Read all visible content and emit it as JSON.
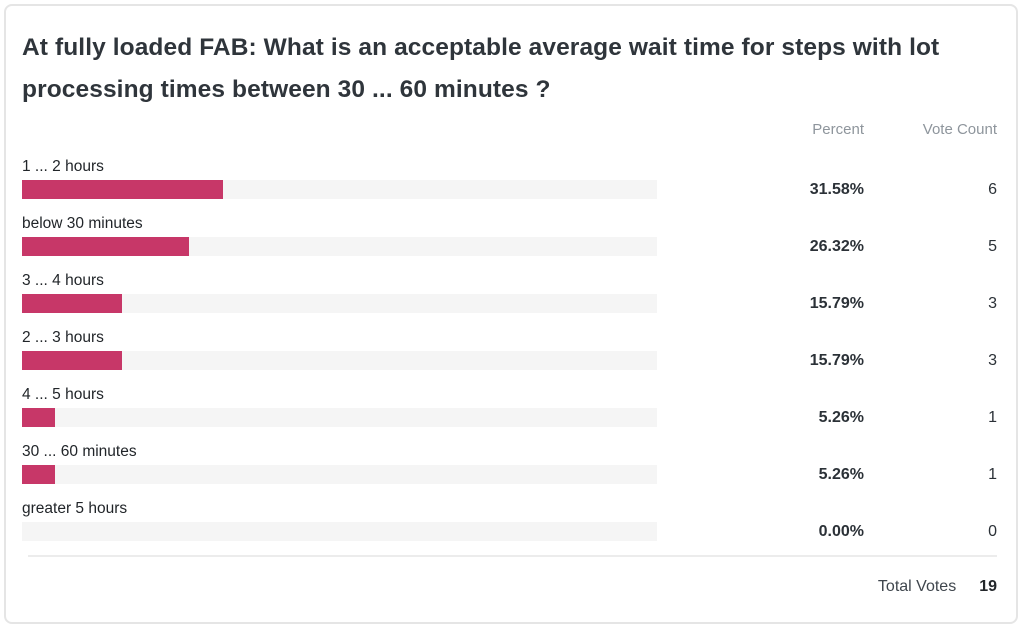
{
  "poll": {
    "title": "At fully loaded FAB: What is an acceptable average wait time for steps with lot processing times between 30 ... 60 minutes ?",
    "columns": {
      "percent": "Percent",
      "vote_count": "Vote Count"
    },
    "options": [
      {
        "label": "1 ... 2 hours",
        "percent": "31.58%",
        "percent_value": 31.58,
        "votes": 6
      },
      {
        "label": "below 30 minutes",
        "percent": "26.32%",
        "percent_value": 26.32,
        "votes": 5
      },
      {
        "label": "3 ... 4 hours",
        "percent": "15.79%",
        "percent_value": 15.79,
        "votes": 3
      },
      {
        "label": "2 ... 3 hours",
        "percent": "15.79%",
        "percent_value": 15.79,
        "votes": 3
      },
      {
        "label": "4 ... 5 hours",
        "percent": "5.26%",
        "percent_value": 5.26,
        "votes": 1
      },
      {
        "label": "30 ... 60 minutes",
        "percent": "5.26%",
        "percent_value": 5.26,
        "votes": 1
      },
      {
        "label": "greater 5 hours",
        "percent": "0.00%",
        "percent_value": 0.0,
        "votes": 0
      }
    ],
    "total_votes_label": "Total Votes",
    "total_votes": 19
  },
  "colors": {
    "bar_fill": "#c73768",
    "bar_track": "#f5f5f5",
    "card_border": "#e5e5e5"
  },
  "chart_data": {
    "type": "bar",
    "orientation": "horizontal",
    "title": "At fully loaded FAB: What is an acceptable average wait time for steps with lot processing times between 30 ... 60 minutes ?",
    "categories": [
      "1 ... 2 hours",
      "below 30 minutes",
      "3 ... 4 hours",
      "2 ... 3 hours",
      "4 ... 5 hours",
      "30 ... 60 minutes",
      "greater 5 hours"
    ],
    "series": [
      {
        "name": "Percent",
        "values": [
          31.58,
          26.32,
          15.79,
          15.79,
          5.26,
          5.26,
          0.0
        ]
      },
      {
        "name": "Vote Count",
        "values": [
          6,
          5,
          3,
          3,
          1,
          1,
          0
        ]
      }
    ],
    "xlabel": "",
    "ylabel": "",
    "xlim": [
      0,
      100
    ],
    "grid": false,
    "legend_position": "none",
    "total_votes": 19
  }
}
